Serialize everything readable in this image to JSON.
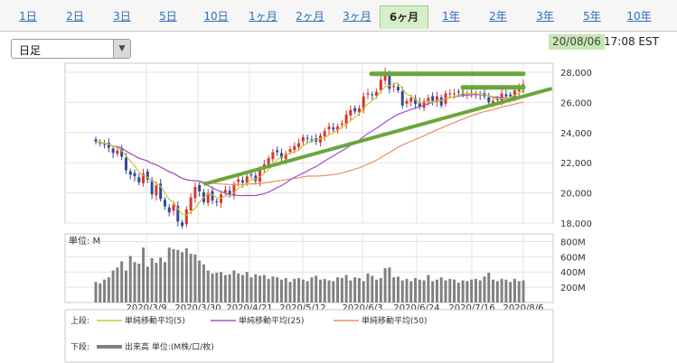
{
  "tabs": [
    {
      "label": "1日"
    },
    {
      "label": "2日"
    },
    {
      "label": "3日"
    },
    {
      "label": "5日"
    },
    {
      "label": "10日"
    },
    {
      "label": "1ヶ月"
    },
    {
      "label": "2ヶ月"
    },
    {
      "label": "3ヶ月"
    },
    {
      "label": "6ヶ月"
    },
    {
      "label": "1年"
    },
    {
      "label": "2年"
    },
    {
      "label": "3年"
    },
    {
      "label": "5年"
    },
    {
      "label": "10年"
    }
  ],
  "active_tab": 8,
  "select": {
    "value": "日足"
  },
  "timestamp": {
    "date": "20/08/06",
    "time": "17:08 EST"
  },
  "colors": {
    "up": "#d9342b",
    "down": "#2f4a9a",
    "sma5": "#c8c832",
    "sma25": "#a050c8",
    "sma50": "#e89060",
    "trend": "#6aa63c",
    "volume": "#808080",
    "accent_green": "#c7e6b3"
  },
  "chart_data": [
    {
      "type": "candlestick",
      "x_ticks": [
        "2020/3/9",
        "2020/3/30",
        "2020/4/21",
        "2020/5/12",
        "2020/6/3",
        "2020/6/24",
        "2020/7/16",
        "2020/8/6"
      ],
      "y_ticks": [
        "28,000",
        "26,000",
        "24,000",
        "22,000",
        "20,000",
        "18,000"
      ],
      "ylim": [
        18000,
        28600
      ],
      "grid": true,
      "close": [
        23400,
        23300,
        23200,
        23000,
        22650,
        22800,
        22400,
        21500,
        21200,
        21100,
        20700,
        21300,
        20900,
        19900,
        20500,
        19600,
        19100,
        18700,
        19200,
        18100,
        17800,
        18900,
        19700,
        20400,
        20100,
        19400,
        20000,
        19500,
        19400,
        19900,
        20200,
        19900,
        20600,
        20900,
        20700,
        21100,
        21200,
        20800,
        21500,
        21900,
        22300,
        22700,
        22700,
        22300,
        22600,
        22900,
        23100,
        23300,
        23700,
        23600,
        23500,
        23400,
        23800,
        24100,
        24400,
        24200,
        24400,
        24600,
        25200,
        25500,
        25400,
        25600,
        26400,
        26600,
        26500,
        26700,
        27500,
        28000,
        26900,
        27100,
        26800,
        25800,
        26100,
        26300,
        25900,
        25700,
        26100,
        26300,
        26100,
        26400,
        25800,
        26600,
        26600,
        26600,
        26700,
        26500,
        26500,
        26600,
        26600,
        26500,
        26400,
        26000,
        26100,
        26200,
        26600,
        26400,
        26400,
        26800,
        27000,
        27200
      ],
      "trend_lines": [
        {
          "from": [
            "2020/3/30",
            20600
          ],
          "to": [
            "2020/8/6",
            26900
          ]
        },
        {
          "from": [
            "2020/6/3",
            27900
          ],
          "to": [
            "2020/8/6",
            27900
          ]
        },
        {
          "from": [
            "2020/7/16",
            27000
          ],
          "to": [
            "2020/8/6",
            27000
          ]
        }
      ]
    },
    {
      "type": "bar",
      "name": "出来高",
      "unit_label": "単位: M",
      "y_ticks": [
        "800M",
        "600M",
        "400M",
        "200M"
      ],
      "ylim": [
        0,
        900
      ],
      "values": [
        270,
        250,
        300,
        330,
        420,
        460,
        540,
        420,
        610,
        530,
        510,
        720,
        470,
        580,
        520,
        590,
        530,
        720,
        700,
        690,
        660,
        710,
        640,
        630,
        550,
        500,
        420,
        380,
        390,
        400,
        360,
        370,
        420,
        380,
        360,
        400,
        330,
        370,
        350,
        360,
        310,
        340,
        330,
        300,
        320,
        270,
        310,
        320,
        300,
        280,
        330,
        350,
        300,
        310,
        290,
        280,
        330,
        320,
        360,
        290,
        330,
        320,
        280,
        380,
        350,
        300,
        320,
        450,
        460,
        330,
        340,
        290,
        310,
        280,
        320,
        300,
        290,
        360,
        280,
        300,
        330,
        290,
        310,
        300,
        260,
        290,
        280,
        300,
        310,
        290,
        340,
        390,
        300,
        280,
        310,
        300,
        270,
        310,
        280,
        290
      ]
    }
  ],
  "legend": {
    "upper_label": "上段:",
    "lower_label": "下段:",
    "items": [
      {
        "label": "単純移動平均(5)"
      },
      {
        "label": "単純移動平均(25)"
      },
      {
        "label": "単純移動平均(50)"
      }
    ],
    "volume_label": "出来高 単位:(M株/口/枚)"
  }
}
